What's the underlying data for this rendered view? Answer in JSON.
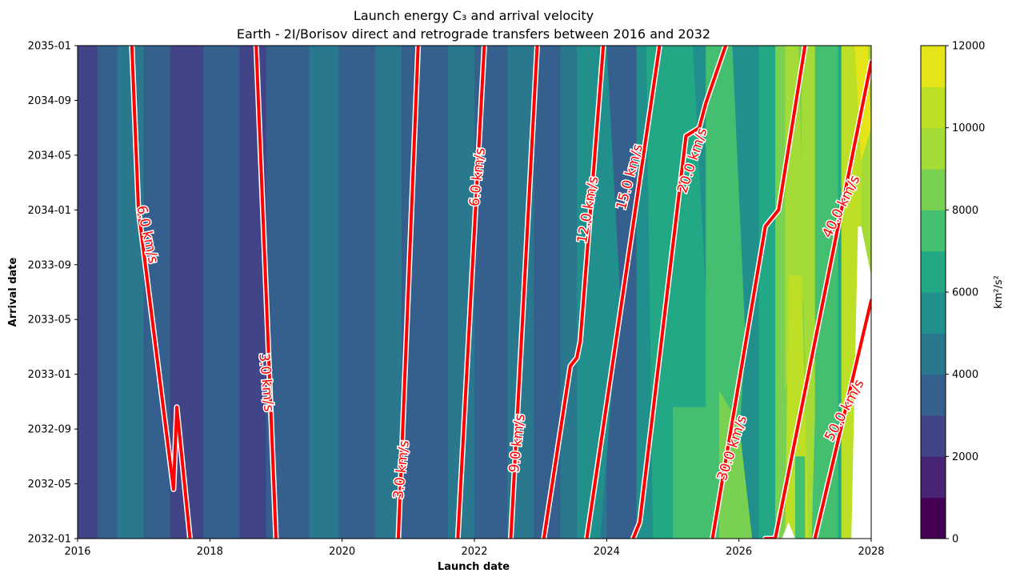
{
  "chart_data": {
    "type": "contour",
    "title_line1": "Launch energy C₃ and arrival velocity",
    "title_line2": "Earth - 2I/Borisov direct and retrograde transfers between 2016 and 2032",
    "xlabel": "Launch date",
    "ylabel": "Arrival date",
    "x_ticks": [
      "2016",
      "2018",
      "2020",
      "2022",
      "2024",
      "2026",
      "2028"
    ],
    "y_ticks": [
      "2032-01",
      "2032-05",
      "2032-09",
      "2033-01",
      "2033-05",
      "2033-09",
      "2034-01",
      "2034-05",
      "2034-09",
      "2035-01"
    ],
    "xlim": [
      2016.0,
      2028.0
    ],
    "ylim": [
      "2032-01",
      "2035-01"
    ],
    "colorbar": {
      "label": "km²/s²",
      "ticks": [
        "0",
        "2000",
        "4000",
        "6000",
        "8000",
        "10000",
        "12000"
      ],
      "range": [
        0,
        12000
      ],
      "levels": [
        0,
        1000,
        2000,
        3000,
        4000,
        5000,
        6000,
        7000,
        8000,
        9000,
        10000,
        11000,
        12000
      ],
      "colors": [
        "#440154",
        "#482475",
        "#414487",
        "#355f8d",
        "#2a788e",
        "#21908d",
        "#22a884",
        "#44bf70",
        "#7ad151",
        "#a5db36",
        "#bddf26",
        "#e4e419"
      ]
    },
    "c3_bands": [
      {
        "x0": 2016.0,
        "x1": 2016.3,
        "level": 3
      },
      {
        "x0": 2016.3,
        "x1": 2016.6,
        "level": 4
      },
      {
        "x0": 2016.6,
        "x1": 2017.0,
        "level": 5
      },
      {
        "x0": 2017.0,
        "x1": 2017.4,
        "level": 4
      },
      {
        "x0": 2017.4,
        "x1": 2017.9,
        "level": 3
      },
      {
        "x0": 2017.9,
        "x1": 2018.45,
        "level": 4
      },
      {
        "x0": 2018.45,
        "x1": 2018.85,
        "level": 3
      },
      {
        "x0": 2018.85,
        "x1": 2019.5,
        "level": 4
      },
      {
        "x0": 2019.5,
        "x1": 2019.95,
        "level": 5
      },
      {
        "x0": 2019.95,
        "x1": 2020.5,
        "level": 4
      },
      {
        "x0": 2020.5,
        "x1": 2020.9,
        "level": 5
      },
      {
        "x0": 2020.9,
        "x1": 2021.6,
        "level": 4
      },
      {
        "x0": 2021.6,
        "x1": 2022.0,
        "level": 5
      },
      {
        "x0": 2022.0,
        "x1": 2022.5,
        "level": 4
      },
      {
        "x0": 2022.5,
        "x1": 2022.9,
        "level": 5
      },
      {
        "x0": 2022.9,
        "x1": 2023.3,
        "level": 4
      },
      {
        "x0": 2023.3,
        "x1": 2023.55,
        "level": 5
      },
      {
        "x0": 2023.55,
        "x1": 2023.75,
        "level": 6
      },
      {
        "x0": 2023.75,
        "x1": 2024.0,
        "level": 5
      },
      {
        "x0": 2024.0,
        "x1": 2024.45,
        "level": 4
      },
      {
        "x0": 2024.45,
        "x1": 2024.9,
        "level": 6
      },
      {
        "x0": 2024.9,
        "x1": 2025.2,
        "level": 7
      },
      {
        "x0": 2025.2,
        "x1": 2025.5,
        "level": 6
      },
      {
        "x0": 2025.5,
        "x1": 2025.9,
        "level": 7
      },
      {
        "x0": 2025.9,
        "x1": 2026.3,
        "level": 6
      },
      {
        "x0": 2026.3,
        "x1": 2026.7,
        "level": 7
      },
      {
        "x0": 2026.7,
        "x1": 2026.95,
        "level": 9
      },
      {
        "x0": 2026.95,
        "x1": 2027.15,
        "level": 10
      },
      {
        "x0": 2027.15,
        "x1": 2027.4,
        "level": 8
      },
      {
        "x0": 2027.4,
        "x1": 2027.55,
        "level": 7
      },
      {
        "x0": 2027.55,
        "x1": 2027.85,
        "level": 11
      },
      {
        "x0": 2027.85,
        "x1": 2028.0,
        "level": 10
      }
    ],
    "c3_patches": [
      {
        "points": [
          [
            2023.7,
            2035.0
          ],
          [
            2024.0,
            2035.0
          ],
          [
            2024.2,
            2033.5
          ],
          [
            2023.9,
            2032.0
          ],
          [
            2023.7,
            2032.0
          ]
        ],
        "level": 6
      },
      {
        "points": [
          [
            2024.6,
            2035.0
          ],
          [
            2025.3,
            2035.0
          ],
          [
            2025.7,
            2032.0
          ],
          [
            2024.7,
            2032.0
          ]
        ],
        "level": 7
      },
      {
        "points": [
          [
            2025.0,
            2032.8
          ],
          [
            2025.6,
            2032.8
          ],
          [
            2025.7,
            2032.0
          ],
          [
            2025.0,
            2032.0
          ]
        ],
        "level": 8
      },
      {
        "points": [
          [
            2025.5,
            2035.0
          ],
          [
            2025.9,
            2035.0
          ],
          [
            2026.1,
            2033.2
          ],
          [
            2025.9,
            2032.0
          ],
          [
            2025.5,
            2032.0
          ]
        ],
        "level": 8
      },
      {
        "points": [
          [
            2025.7,
            2032.9
          ],
          [
            2026.0,
            2032.7
          ],
          [
            2026.2,
            2032.0
          ],
          [
            2025.7,
            2032.0
          ]
        ],
        "level": 9
      },
      {
        "points": [
          [
            2026.55,
            2035.0
          ],
          [
            2026.9,
            2035.0
          ],
          [
            2027.0,
            2033.0
          ],
          [
            2026.9,
            2032.0
          ],
          [
            2026.55,
            2032.0
          ]
        ],
        "level": 9
      },
      {
        "points": [
          [
            2026.7,
            2035.0
          ],
          [
            2026.9,
            2035.0
          ],
          [
            2027.0,
            2033.5
          ],
          [
            2026.7,
            2032.9
          ]
        ],
        "level": 10
      },
      {
        "points": [
          [
            2026.75,
            2033.6
          ],
          [
            2026.95,
            2033.6
          ],
          [
            2027.05,
            2032.0
          ],
          [
            2026.7,
            2032.0
          ]
        ],
        "level": 11
      },
      {
        "points": [
          [
            2026.85,
            2032.5
          ],
          [
            2027.0,
            2032.5
          ],
          [
            2027.0,
            2032.0
          ],
          [
            2026.85,
            2032.0
          ]
        ],
        "level": 8
      },
      {
        "points": [
          [
            2027.3,
            2035.0
          ],
          [
            2027.5,
            2035.0
          ],
          [
            2027.5,
            2032.0
          ],
          [
            2027.1,
            2032.0
          ],
          [
            2027.2,
            2033.5
          ]
        ],
        "level": 8
      },
      {
        "points": [
          [
            2027.55,
            2035.0
          ],
          [
            2027.95,
            2035.0
          ],
          [
            2027.8,
            2034.2
          ],
          [
            2027.6,
            2032.0
          ],
          [
            2027.55,
            2032.0
          ]
        ],
        "level": 11
      },
      {
        "points": [
          [
            2027.75,
            2035.0
          ],
          [
            2027.95,
            2035.0
          ],
          [
            2028.0,
            2034.5
          ],
          [
            2027.85,
            2034.3
          ]
        ],
        "level": 12
      }
    ],
    "c3_blank": [
      {
        "points": [
          [
            2026.65,
            2032.0
          ],
          [
            2026.75,
            2032.1
          ],
          [
            2026.85,
            2032.0
          ]
        ]
      },
      {
        "points": [
          [
            2027.7,
            2032.0
          ],
          [
            2027.8,
            2033.9
          ],
          [
            2027.85,
            2033.9
          ],
          [
            2028.0,
            2033.6
          ],
          [
            2028.0,
            2032.0
          ]
        ]
      }
    ],
    "arrival_velocity": {
      "color": "#ff0000",
      "contours": [
        {
          "value": "6.0 km/s",
          "points": [
            [
              2016.82,
              2035.0
            ],
            [
              2016.92,
              2034.0
            ],
            [
              2017.45,
              2032.3
            ],
            [
              2017.5,
              2032.8
            ],
            [
              2017.7,
              2032.0
            ]
          ],
          "label": "6.0 km/s",
          "label_at": [
            2017.05,
            2033.85
          ],
          "label_angle": 78
        },
        {
          "value": "3.0 km/s",
          "points": [
            [
              2018.7,
              2035.0
            ],
            [
              2019.0,
              2032.0
            ]
          ],
          "label": "3.0 km/s",
          "label_at": [
            2018.85,
            2032.95
          ],
          "label_angle": 85
        },
        {
          "value": "3.0 km/s",
          "points": [
            [
              2020.85,
              2032.0
            ],
            [
              2021.15,
              2035.0
            ]
          ],
          "label": "3.0 km/s",
          "label_at": [
            2020.9,
            2032.42
          ],
          "label_angle": -84
        },
        {
          "value": "6.0 km/s",
          "points": [
            [
              2021.75,
              2032.0
            ],
            [
              2022.15,
              2035.0
            ]
          ],
          "label": "6.0 km/s",
          "label_at": [
            2022.05,
            2034.2
          ],
          "label_angle": -84
        },
        {
          "value": "9.0 km/s",
          "points": [
            [
              2022.55,
              2032.0
            ],
            [
              2022.95,
              2035.0
            ]
          ],
          "label": "9.0 km/s",
          "label_at": [
            2022.65,
            2032.58
          ],
          "label_angle": -84
        },
        {
          "value": "12.0 km/s",
          "points": [
            [
              2023.05,
              2032.0
            ],
            [
              2023.45,
              2033.05
            ],
            [
              2023.55,
              2033.1
            ],
            [
              2023.6,
              2033.2
            ],
            [
              2023.95,
              2035.0
            ]
          ],
          "label": "12.0 km/s",
          "label_at": [
            2023.72,
            2034.0
          ],
          "label_angle": -80
        },
        {
          "value": "15.0 km/s",
          "points": [
            [
              2023.7,
              2032.0
            ],
            [
              2024.8,
              2035.0
            ]
          ],
          "label": "15.0 km/s",
          "label_at": [
            2024.35,
            2034.2
          ],
          "label_angle": -75
        },
        {
          "value": "20.0 km/s",
          "points": [
            [
              2024.4,
              2032.0
            ],
            [
              2024.5,
              2032.1
            ],
            [
              2025.2,
              2034.45
            ],
            [
              2025.4,
              2034.5
            ],
            [
              2025.5,
              2034.65
            ],
            [
              2025.8,
              2035.0
            ]
          ],
          "label": "20.0 km/s",
          "label_at": [
            2025.3,
            2034.3
          ],
          "label_angle": -72
        },
        {
          "value": "30.0 km/s",
          "points": [
            [
              2025.6,
              2032.0
            ],
            [
              2026.4,
              2033.9
            ],
            [
              2026.5,
              2033.95
            ],
            [
              2026.6,
              2034.0
            ],
            [
              2027.0,
              2035.0
            ]
          ],
          "label": "30.0 km/s",
          "label_at": [
            2025.9,
            2032.55
          ],
          "label_angle": -72
        },
        {
          "value": "40.0 km/s",
          "points": [
            [
              2026.4,
              2032.0
            ],
            [
              2026.55,
              2032.0
            ],
            [
              2028.0,
              2034.9
            ]
          ],
          "label": "40.0 km/s",
          "label_at": [
            2027.55,
            2034.02
          ],
          "label_angle": -64
        },
        {
          "value": "50.0 km/s",
          "points": [
            [
              2027.15,
              2032.0
            ],
            [
              2028.0,
              2033.45
            ]
          ],
          "label": "50.0 km/s",
          "label_at": [
            2027.6,
            2032.78
          ],
          "label_angle": -62
        }
      ]
    }
  }
}
